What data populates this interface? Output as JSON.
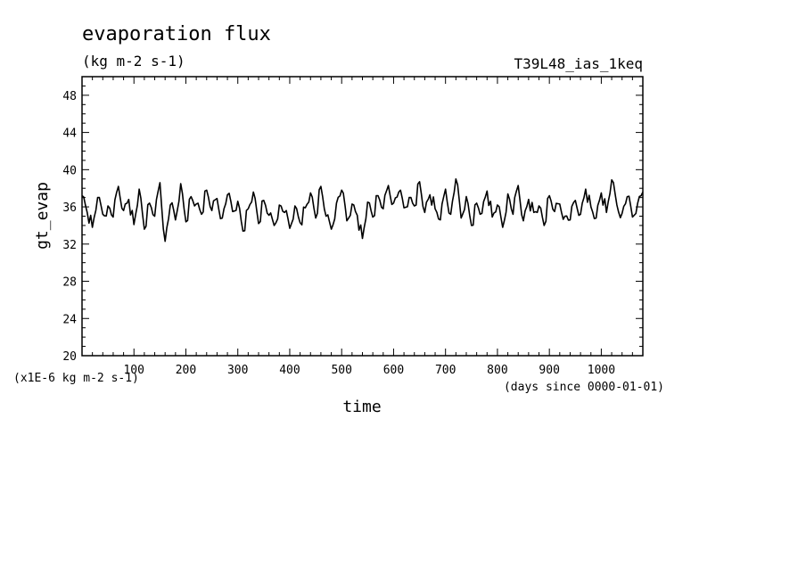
{
  "chart_data": {
    "type": "line",
    "title": "evaporation flux",
    "subtitle": "(kg m-2 s-1)",
    "run_label": "T39L48_ias_1keq",
    "xlabel": "time",
    "xunits": "(days since 0000-01-01)",
    "ylabel": "gt_evap",
    "yunits": "(x1E-6 kg m-2 s-1)",
    "xlim": [
      0,
      1080
    ],
    "ylim": [
      20,
      50
    ],
    "xticks": [
      100,
      200,
      300,
      400,
      500,
      600,
      700,
      800,
      900,
      1000
    ],
    "yticks": [
      20,
      24,
      28,
      32,
      36,
      40,
      44,
      48
    ],
    "grid": false,
    "series": [
      {
        "x": [
          0,
          10,
          20,
          30,
          40,
          50,
          60,
          70,
          80,
          90,
          100,
          110,
          120,
          130,
          140,
          150,
          160,
          170,
          180,
          190,
          200,
          210,
          220,
          230,
          240,
          250,
          260,
          270,
          280,
          290,
          300,
          310,
          320,
          330,
          340,
          350,
          360,
          370,
          380,
          390,
          400,
          410,
          420,
          430,
          440,
          450,
          460,
          470,
          480,
          490,
          500,
          510,
          520,
          530,
          540,
          550,
          560,
          570,
          580,
          590,
          600,
          610,
          620,
          630,
          640,
          650,
          660,
          670,
          680,
          690,
          700,
          710,
          720,
          730,
          740,
          750,
          760,
          770,
          780,
          790,
          800,
          810,
          820,
          830,
          840,
          850,
          860,
          870,
          880,
          890,
          900,
          910,
          920,
          930,
          940,
          950,
          960,
          970,
          980,
          990,
          1000,
          1010,
          1020,
          1030,
          1040,
          1050,
          1060,
          1070,
          1080
        ],
        "values": [
          37.2,
          35.4,
          33.8,
          37.0,
          35.2,
          36.1,
          34.9,
          38.2,
          35.6,
          36.8,
          34.1,
          37.9,
          33.6,
          36.4,
          35.0,
          38.6,
          32.3,
          36.2,
          34.6,
          38.5,
          34.4,
          37.1,
          36.3,
          35.2,
          37.8,
          35.6,
          36.9,
          34.8,
          37.3,
          35.5,
          36.6,
          33.4,
          35.8,
          37.6,
          34.2,
          36.7,
          35.1,
          34.0,
          36.2,
          35.4,
          33.7,
          36.1,
          34.3,
          35.9,
          37.5,
          34.8,
          38.2,
          35.0,
          33.6,
          36.4,
          37.8,
          34.5,
          36.3,
          35.1,
          32.6,
          36.5,
          34.9,
          37.2,
          35.8,
          38.3,
          36.4,
          37.6,
          35.9,
          37.0,
          36.1,
          38.7,
          35.4,
          37.3,
          35.8,
          34.6,
          37.9,
          35.2,
          39.0,
          34.8,
          37.1,
          34.0,
          36.4,
          35.3,
          37.7,
          34.9,
          36.2,
          33.8,
          37.4,
          35.2,
          38.3,
          34.5,
          36.8,
          35.4,
          36.1,
          34.0,
          37.2,
          35.5,
          36.3,
          35.0,
          34.6,
          36.7,
          35.2,
          37.9,
          36.0,
          34.8,
          37.5,
          35.4,
          38.9,
          36.2,
          35.3,
          37.1,
          34.9,
          36.4,
          37.6
        ]
      }
    ]
  }
}
